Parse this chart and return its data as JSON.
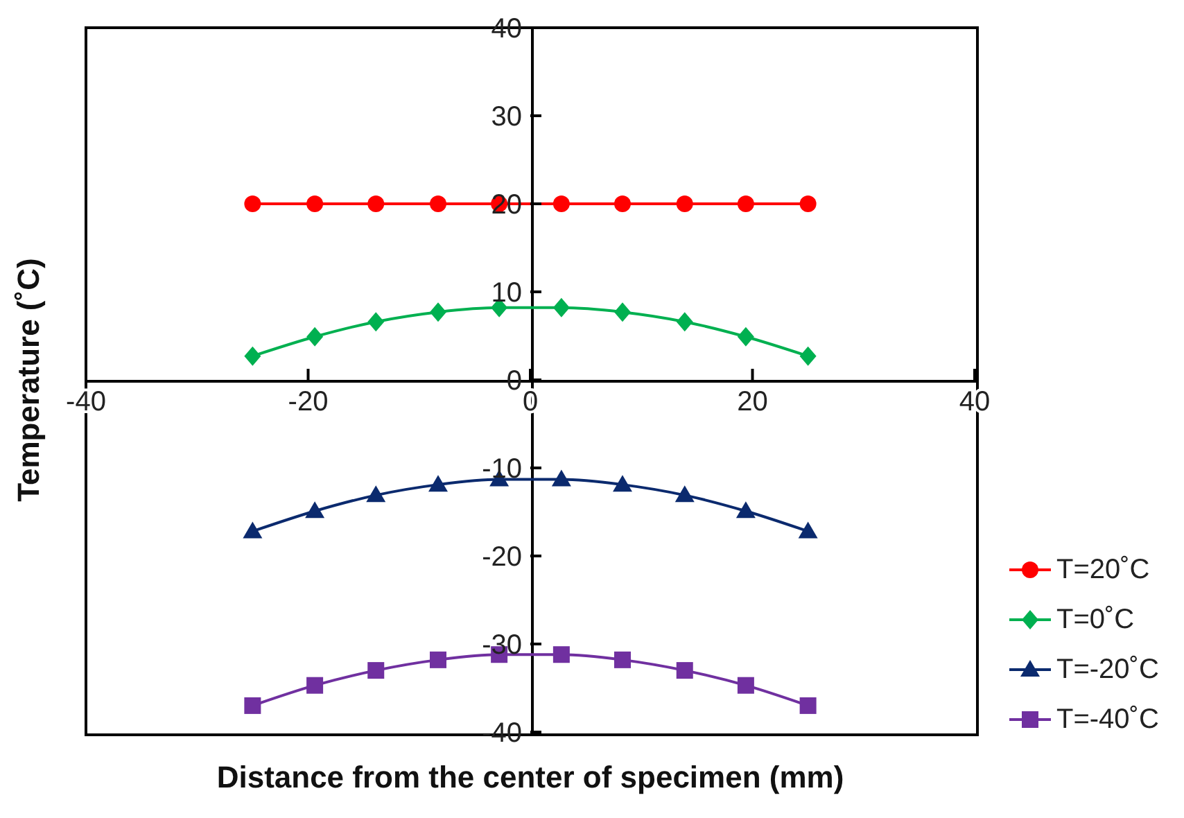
{
  "chart_data": {
    "type": "line",
    "xlabel": "Distance from the center of specimen (mm)",
    "ylabel": "Temperature (˚C)",
    "x": [
      -25,
      -19.4,
      -13.9,
      -8.3,
      -2.8,
      2.8,
      8.3,
      13.9,
      19.4,
      25
    ],
    "series": [
      {
        "name": "T=20˚C",
        "color": "#ff0000",
        "marker": "circle",
        "values": [
          20,
          20,
          20,
          20,
          20,
          20,
          20,
          20,
          20,
          20
        ]
      },
      {
        "name": "T=0˚C",
        "color": "#00b050",
        "marker": "diamond",
        "values": [
          2.7,
          4.9,
          6.6,
          7.7,
          8.2,
          8.2,
          7.7,
          6.6,
          4.9,
          2.7
        ]
      },
      {
        "name": "T=-20˚C",
        "color": "#0b2a6e",
        "marker": "triangle",
        "values": [
          -17.2,
          -14.9,
          -13.1,
          -11.9,
          -11.3,
          -11.3,
          -11.9,
          -13.1,
          -14.9,
          -17.2
        ]
      },
      {
        "name": "T=-40˚C",
        "color": "#7030a0",
        "marker": "square",
        "values": [
          -37,
          -34.7,
          -33,
          -31.8,
          -31.2,
          -31.2,
          -31.8,
          -33,
          -34.7,
          -37
        ]
      }
    ],
    "xlim": [
      -40,
      40
    ],
    "xticks": [
      -40,
      -20,
      0,
      20,
      40
    ],
    "ylim": [
      -40,
      40
    ],
    "yticks": [
      -40,
      -30,
      -20,
      -10,
      0,
      10,
      20,
      30,
      40
    ],
    "grid": false,
    "legend": "right"
  }
}
